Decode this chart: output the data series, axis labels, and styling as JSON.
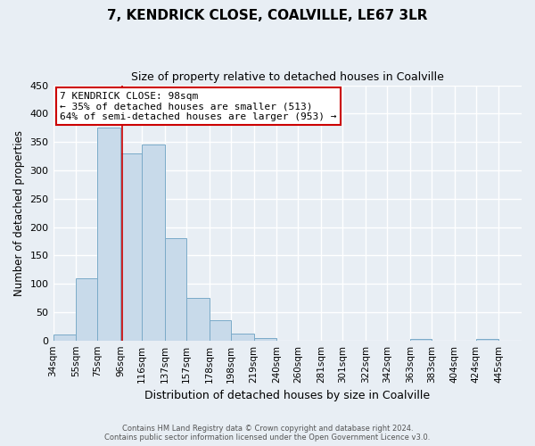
{
  "title": "7, KENDRICK CLOSE, COALVILLE, LE67 3LR",
  "subtitle": "Size of property relative to detached houses in Coalville",
  "xlabel": "Distribution of detached houses by size in Coalville",
  "ylabel": "Number of detached properties",
  "bar_color": "#c8daea",
  "bar_edge_color": "#7aaac8",
  "bin_labels": [
    "34sqm",
    "55sqm",
    "75sqm",
    "96sqm",
    "116sqm",
    "137sqm",
    "157sqm",
    "178sqm",
    "198sqm",
    "219sqm",
    "240sqm",
    "260sqm",
    "281sqm",
    "301sqm",
    "322sqm",
    "342sqm",
    "363sqm",
    "383sqm",
    "404sqm",
    "424sqm",
    "445sqm"
  ],
  "bin_edges": [
    34,
    55,
    75,
    96,
    116,
    137,
    157,
    178,
    198,
    219,
    240,
    260,
    281,
    301,
    322,
    342,
    363,
    383,
    404,
    424,
    445
  ],
  "bar_heights": [
    10,
    110,
    375,
    330,
    345,
    180,
    75,
    35,
    12,
    5,
    0,
    0,
    0,
    0,
    0,
    0,
    2,
    0,
    0,
    2,
    0
  ],
  "ylim": [
    0,
    450
  ],
  "yticks": [
    0,
    50,
    100,
    150,
    200,
    250,
    300,
    350,
    400,
    450
  ],
  "property_size": 98,
  "property_line_color": "#cc0000",
  "annotation_title": "7 KENDRICK CLOSE: 98sqm",
  "annotation_line1": "← 35% of detached houses are smaller (513)",
  "annotation_line2": "64% of semi-detached houses are larger (953) →",
  "annotation_box_facecolor": "#ffffff",
  "annotation_box_edgecolor": "#cc0000",
  "footer_line1": "Contains HM Land Registry data © Crown copyright and database right 2024.",
  "footer_line2": "Contains public sector information licensed under the Open Government Licence v3.0.",
  "fig_facecolor": "#e8eef4",
  "ax_facecolor": "#e8eef4",
  "grid_color": "#ffffff",
  "title_fontsize": 11,
  "subtitle_fontsize": 9
}
